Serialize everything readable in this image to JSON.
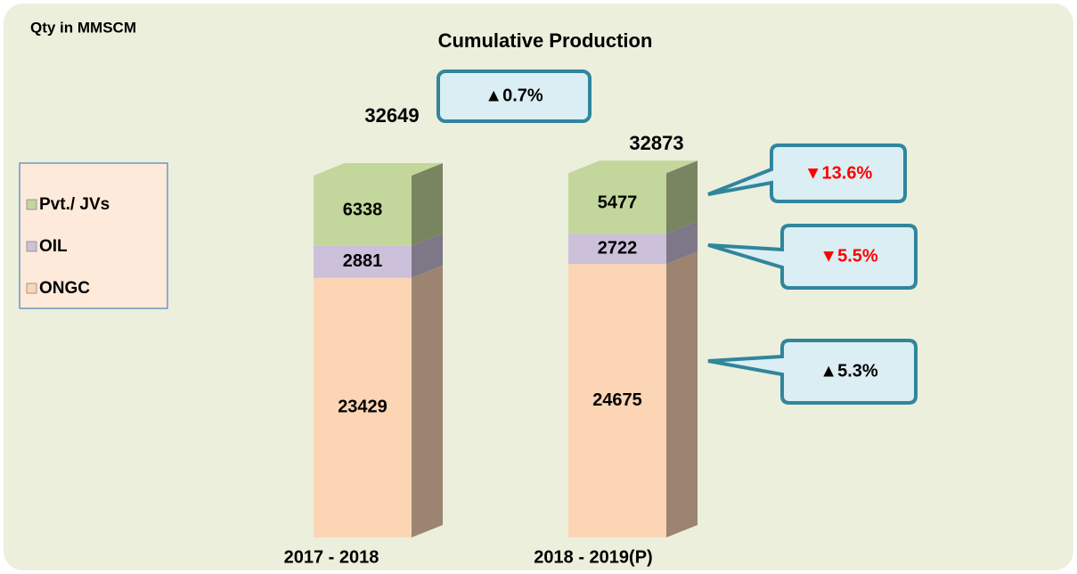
{
  "chart_data": {
    "type": "stacked-bar-3d",
    "title": "Cumulative Production",
    "unit_label": "Qty in MMSCM",
    "categories": [
      "2017 - 2018",
      "2018 - 2019(P)"
    ],
    "series": [
      {
        "name": "ONGC",
        "color": "#fcd5b5",
        "values": [
          23429,
          24675
        ]
      },
      {
        "name": "OIL",
        "color": "#ccc0da",
        "values": [
          2881,
          2722
        ]
      },
      {
        "name": "Pvt./ JVs",
        "color": "#c3d69b",
        "values": [
          6338,
          5477
        ]
      }
    ],
    "totals": [
      32649,
      32873
    ],
    "annotations": [
      {
        "text": "▲0.7%",
        "color": "#000000"
      },
      {
        "text": "▼13.6%",
        "color": "#ff0000"
      },
      {
        "text": "▼5.5%",
        "color": "#ff0000"
      },
      {
        "text": "▲5.3%",
        "color": "#000000"
      }
    ]
  }
}
